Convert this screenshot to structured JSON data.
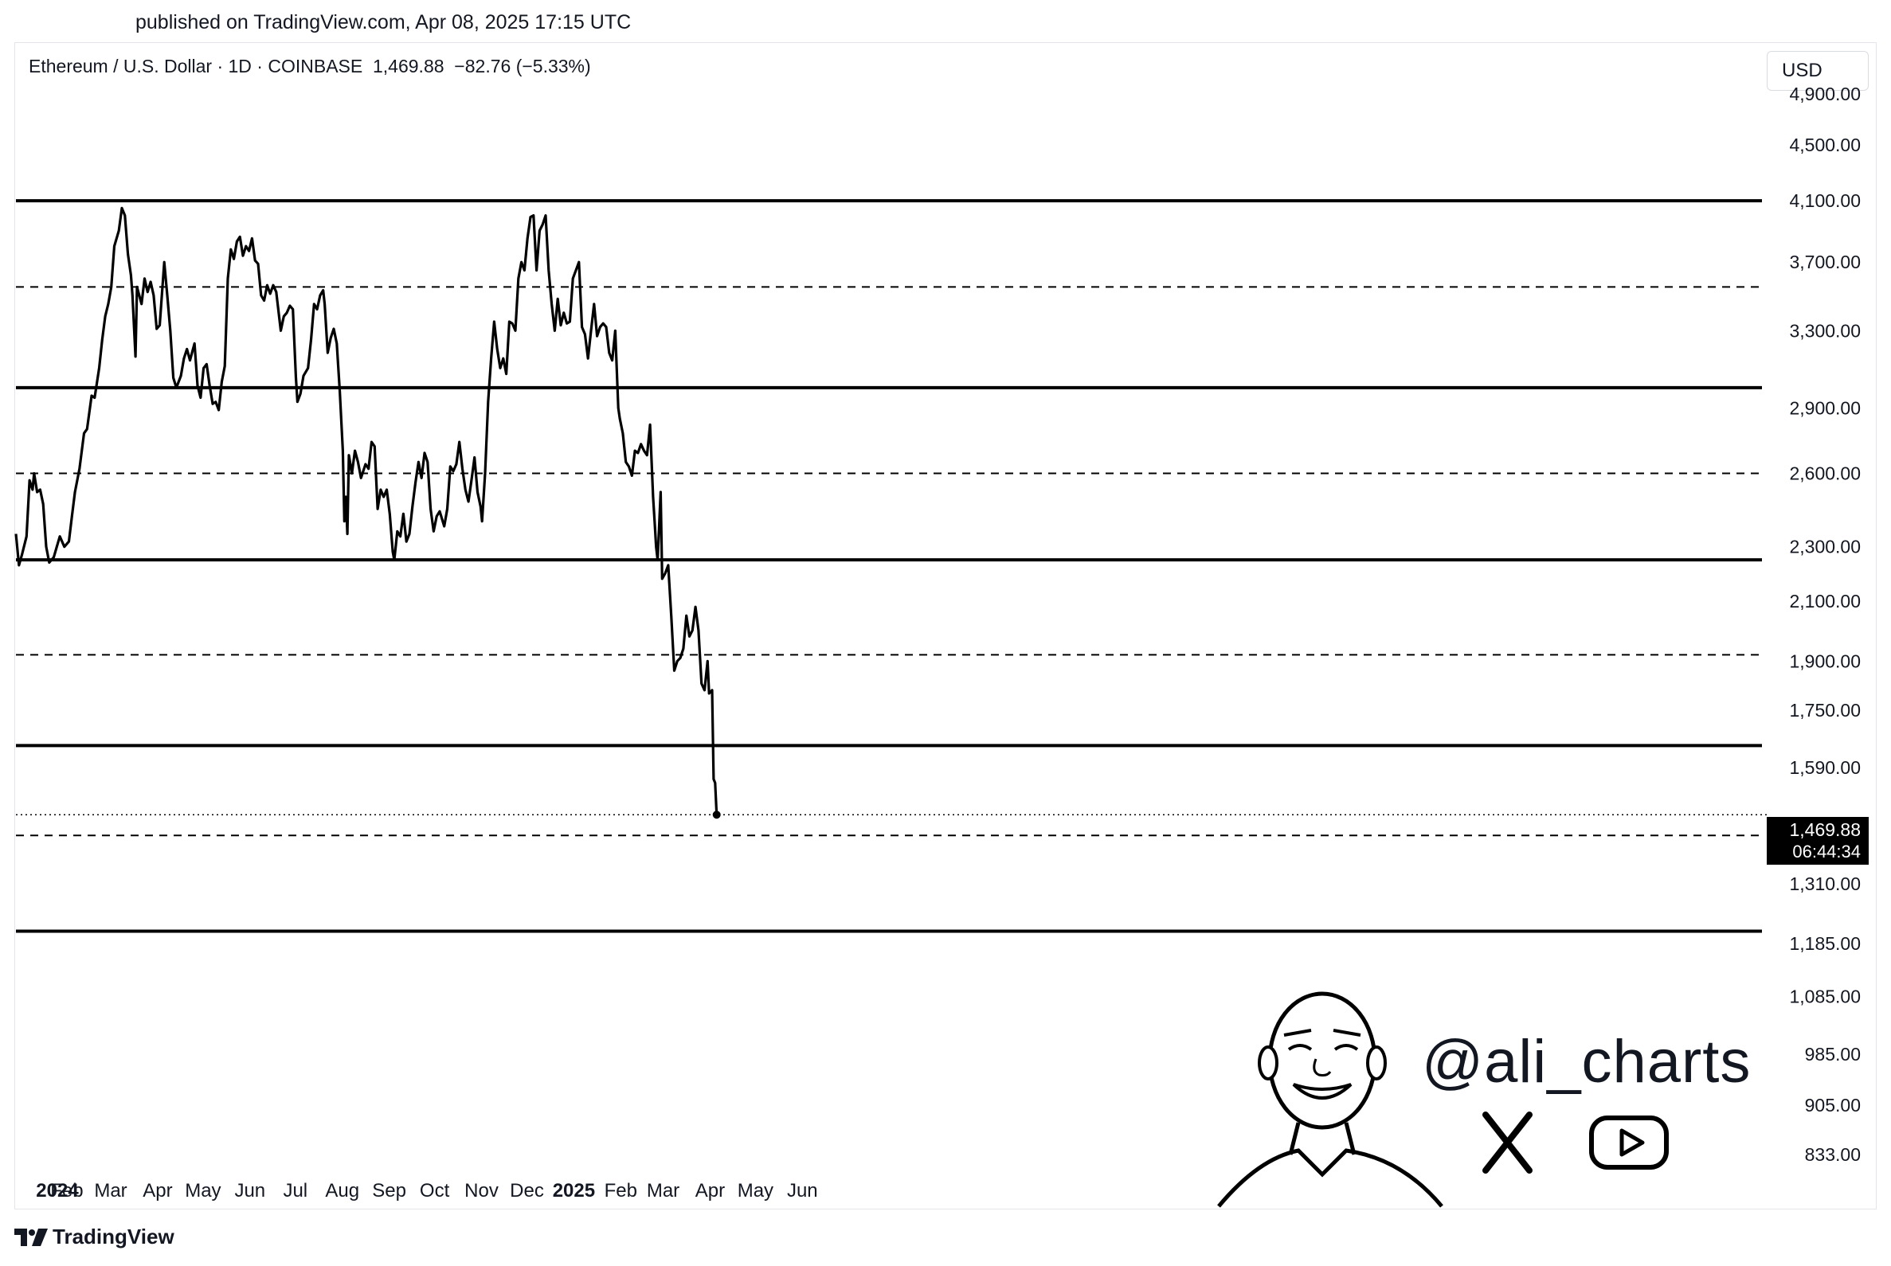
{
  "header": {
    "published": "published on TradingView.com, Apr 08, 2025 17:15 UTC",
    "symbol_line": "Ethereum / U.S. Dollar · 1D · COINBASE  1,469.88  −82.76 (−5.33%)",
    "currency": "USD"
  },
  "footer": {
    "brand": "TradingView"
  },
  "watermark": {
    "handle": "@ali_charts"
  },
  "last_price_label": {
    "price": "1,469.88",
    "countdown": "06:44:34"
  },
  "chart_data": {
    "type": "line",
    "scale": "log",
    "x_ticks": [
      "2024",
      "Feb",
      "Mar",
      "Apr",
      "May",
      "Jun",
      "Jul",
      "Aug",
      "Sep",
      "Oct",
      "Nov",
      "Dec",
      "2025",
      "Feb",
      "Mar",
      "Apr",
      "May",
      "Jun"
    ],
    "x_ticks_bold": [
      "2024",
      "2025"
    ],
    "y_ticks": [
      "4,900.00",
      "4,500.00",
      "4,100.00",
      "3,700.00",
      "3,300.00",
      "2,900.00",
      "2,600.00",
      "2,300.00",
      "2,100.00",
      "1,900.00",
      "1,750.00",
      "1,590.00",
      "1,310.00",
      "1,185.00",
      "1,085.00",
      "985.00",
      "905.00",
      "833.00"
    ],
    "ylim": [
      820,
      5100
    ],
    "levels": [
      {
        "price": 4100,
        "style": "solid"
      },
      {
        "price": 3550,
        "style": "dashed"
      },
      {
        "price": 3000,
        "style": "solid"
      },
      {
        "price": 2600,
        "style": "dashed"
      },
      {
        "price": 2250,
        "style": "solid"
      },
      {
        "price": 1920,
        "style": "dashed"
      },
      {
        "price": 1650,
        "style": "solid"
      },
      {
        "price": 1420,
        "style": "dashed"
      },
      {
        "price": 1210,
        "style": "solid"
      }
    ],
    "last_price": 1469.88,
    "series": [
      {
        "values": [
          [
            "2024-01-01",
            2350
          ],
          [
            "2024-01-03",
            2230
          ],
          [
            "2024-01-05",
            2270
          ],
          [
            "2024-01-08",
            2340
          ],
          [
            "2024-01-10",
            2570
          ],
          [
            "2024-01-12",
            2530
          ],
          [
            "2024-01-13",
            2600
          ],
          [
            "2024-01-15",
            2520
          ],
          [
            "2024-01-17",
            2530
          ],
          [
            "2024-01-19",
            2470
          ],
          [
            "2024-01-21",
            2300
          ],
          [
            "2024-01-23",
            2240
          ],
          [
            "2024-01-26",
            2260
          ],
          [
            "2024-01-28",
            2300
          ],
          [
            "2024-01-30",
            2340
          ],
          [
            "2024-02-02",
            2300
          ],
          [
            "2024-02-05",
            2320
          ],
          [
            "2024-02-07",
            2420
          ],
          [
            "2024-02-09",
            2520
          ],
          [
            "2024-02-12",
            2620
          ],
          [
            "2024-02-15",
            2780
          ],
          [
            "2024-02-17",
            2800
          ],
          [
            "2024-02-20",
            2960
          ],
          [
            "2024-02-22",
            2950
          ],
          [
            "2024-02-25",
            3100
          ],
          [
            "2024-02-27",
            3250
          ],
          [
            "2024-02-29",
            3380
          ],
          [
            "2024-03-02",
            3450
          ],
          [
            "2024-03-04",
            3550
          ],
          [
            "2024-03-06",
            3800
          ],
          [
            "2024-03-09",
            3900
          ],
          [
            "2024-03-11",
            4050
          ],
          [
            "2024-03-13",
            4000
          ],
          [
            "2024-03-15",
            3750
          ],
          [
            "2024-03-17",
            3620
          ],
          [
            "2024-03-18",
            3500
          ],
          [
            "2024-03-20",
            3160
          ],
          [
            "2024-03-21",
            3550
          ],
          [
            "2024-03-24",
            3450
          ],
          [
            "2024-03-26",
            3600
          ],
          [
            "2024-03-28",
            3520
          ],
          [
            "2024-03-30",
            3580
          ],
          [
            "2024-04-01",
            3500
          ],
          [
            "2024-04-03",
            3310
          ],
          [
            "2024-04-05",
            3330
          ],
          [
            "2024-04-08",
            3700
          ],
          [
            "2024-04-10",
            3500
          ],
          [
            "2024-04-12",
            3300
          ],
          [
            "2024-04-14",
            3050
          ],
          [
            "2024-04-16",
            3000
          ],
          [
            "2024-04-19",
            3060
          ],
          [
            "2024-04-21",
            3150
          ],
          [
            "2024-04-23",
            3200
          ],
          [
            "2024-04-25",
            3140
          ],
          [
            "2024-04-28",
            3230
          ],
          [
            "2024-04-30",
            3010
          ],
          [
            "2024-05-02",
            2950
          ],
          [
            "2024-05-04",
            3100
          ],
          [
            "2024-05-06",
            3120
          ],
          [
            "2024-05-08",
            3010
          ],
          [
            "2024-05-10",
            2920
          ],
          [
            "2024-05-12",
            2930
          ],
          [
            "2024-05-14",
            2890
          ],
          [
            "2024-05-16",
            3030
          ],
          [
            "2024-05-18",
            3110
          ],
          [
            "2024-05-20",
            3600
          ],
          [
            "2024-05-22",
            3780
          ],
          [
            "2024-05-24",
            3720
          ],
          [
            "2024-05-26",
            3830
          ],
          [
            "2024-05-28",
            3860
          ],
          [
            "2024-05-30",
            3740
          ],
          [
            "2024-06-01",
            3800
          ],
          [
            "2024-06-03",
            3770
          ],
          [
            "2024-06-05",
            3850
          ],
          [
            "2024-06-07",
            3710
          ],
          [
            "2024-06-09",
            3690
          ],
          [
            "2024-06-11",
            3500
          ],
          [
            "2024-06-13",
            3470
          ],
          [
            "2024-06-15",
            3560
          ],
          [
            "2024-06-17",
            3510
          ],
          [
            "2024-06-19",
            3560
          ],
          [
            "2024-06-21",
            3520
          ],
          [
            "2024-06-24",
            3300
          ],
          [
            "2024-06-26",
            3380
          ],
          [
            "2024-06-28",
            3400
          ],
          [
            "2024-06-30",
            3440
          ],
          [
            "2024-07-02",
            3420
          ],
          [
            "2024-07-04",
            3050
          ],
          [
            "2024-07-05",
            2930
          ],
          [
            "2024-07-07",
            2970
          ],
          [
            "2024-07-09",
            3060
          ],
          [
            "2024-07-12",
            3100
          ],
          [
            "2024-07-14",
            3250
          ],
          [
            "2024-07-16",
            3450
          ],
          [
            "2024-07-18",
            3420
          ],
          [
            "2024-07-20",
            3500
          ],
          [
            "2024-07-22",
            3530
          ],
          [
            "2024-07-23",
            3450
          ],
          [
            "2024-07-25",
            3180
          ],
          [
            "2024-07-27",
            3260
          ],
          [
            "2024-07-29",
            3310
          ],
          [
            "2024-07-31",
            3230
          ],
          [
            "2024-08-02",
            2980
          ],
          [
            "2024-08-04",
            2700
          ],
          [
            "2024-08-05",
            2400
          ],
          [
            "2024-08-06",
            2500
          ],
          [
            "2024-08-07",
            2350
          ],
          [
            "2024-08-08",
            2680
          ],
          [
            "2024-08-10",
            2600
          ],
          [
            "2024-08-12",
            2700
          ],
          [
            "2024-08-14",
            2650
          ],
          [
            "2024-08-16",
            2580
          ],
          [
            "2024-08-19",
            2640
          ],
          [
            "2024-08-21",
            2620
          ],
          [
            "2024-08-23",
            2740
          ],
          [
            "2024-08-25",
            2720
          ],
          [
            "2024-08-27",
            2450
          ],
          [
            "2024-08-29",
            2530
          ],
          [
            "2024-08-31",
            2500
          ],
          [
            "2024-09-02",
            2530
          ],
          [
            "2024-09-04",
            2430
          ],
          [
            "2024-09-06",
            2280
          ],
          [
            "2024-09-07",
            2250
          ],
          [
            "2024-09-09",
            2360
          ],
          [
            "2024-09-11",
            2340
          ],
          [
            "2024-09-13",
            2430
          ],
          [
            "2024-09-15",
            2320
          ],
          [
            "2024-09-17",
            2350
          ],
          [
            "2024-09-19",
            2460
          ],
          [
            "2024-09-21",
            2560
          ],
          [
            "2024-09-23",
            2650
          ],
          [
            "2024-09-25",
            2580
          ],
          [
            "2024-09-27",
            2690
          ],
          [
            "2024-09-29",
            2650
          ],
          [
            "2024-10-01",
            2450
          ],
          [
            "2024-10-03",
            2360
          ],
          [
            "2024-10-05",
            2420
          ],
          [
            "2024-10-07",
            2440
          ],
          [
            "2024-10-10",
            2380
          ],
          [
            "2024-10-12",
            2450
          ],
          [
            "2024-10-14",
            2630
          ],
          [
            "2024-10-16",
            2610
          ],
          [
            "2024-10-18",
            2640
          ],
          [
            "2024-10-20",
            2740
          ],
          [
            "2024-10-22",
            2620
          ],
          [
            "2024-10-24",
            2530
          ],
          [
            "2024-10-26",
            2480
          ],
          [
            "2024-10-28",
            2570
          ],
          [
            "2024-10-30",
            2670
          ],
          [
            "2024-11-01",
            2520
          ],
          [
            "2024-11-03",
            2460
          ],
          [
            "2024-11-04",
            2400
          ],
          [
            "2024-11-06",
            2600
          ],
          [
            "2024-11-08",
            2930
          ],
          [
            "2024-11-10",
            3150
          ],
          [
            "2024-11-12",
            3350
          ],
          [
            "2024-11-14",
            3200
          ],
          [
            "2024-11-16",
            3100
          ],
          [
            "2024-11-18",
            3150
          ],
          [
            "2024-11-20",
            3070
          ],
          [
            "2024-11-22",
            3350
          ],
          [
            "2024-11-24",
            3340
          ],
          [
            "2024-11-26",
            3300
          ],
          [
            "2024-11-28",
            3600
          ],
          [
            "2024-11-30",
            3700
          ],
          [
            "2024-12-02",
            3650
          ],
          [
            "2024-12-04",
            3850
          ],
          [
            "2024-12-06",
            3990
          ],
          [
            "2024-12-08",
            4000
          ],
          [
            "2024-12-10",
            3650
          ],
          [
            "2024-12-12",
            3900
          ],
          [
            "2024-12-14",
            3940
          ],
          [
            "2024-12-16",
            4000
          ],
          [
            "2024-12-18",
            3650
          ],
          [
            "2024-12-20",
            3450
          ],
          [
            "2024-12-22",
            3300
          ],
          [
            "2024-12-24",
            3480
          ],
          [
            "2024-12-26",
            3330
          ],
          [
            "2024-12-28",
            3400
          ],
          [
            "2024-12-30",
            3340
          ],
          [
            "2025-01-01",
            3350
          ],
          [
            "2025-01-03",
            3600
          ],
          [
            "2025-01-05",
            3650
          ],
          [
            "2025-01-07",
            3700
          ],
          [
            "2025-01-09",
            3320
          ],
          [
            "2025-01-11",
            3280
          ],
          [
            "2025-01-13",
            3150
          ],
          [
            "2025-01-15",
            3300
          ],
          [
            "2025-01-17",
            3450
          ],
          [
            "2025-01-19",
            3270
          ],
          [
            "2025-01-21",
            3320
          ],
          [
            "2025-01-23",
            3340
          ],
          [
            "2025-01-25",
            3320
          ],
          [
            "2025-01-27",
            3180
          ],
          [
            "2025-01-29",
            3140
          ],
          [
            "2025-01-31",
            3300
          ],
          [
            "2025-02-02",
            2900
          ],
          [
            "2025-02-03",
            2850
          ],
          [
            "2025-02-05",
            2780
          ],
          [
            "2025-02-07",
            2650
          ],
          [
            "2025-02-09",
            2630
          ],
          [
            "2025-02-11",
            2590
          ],
          [
            "2025-02-13",
            2700
          ],
          [
            "2025-02-15",
            2690
          ],
          [
            "2025-02-17",
            2730
          ],
          [
            "2025-02-19",
            2700
          ],
          [
            "2025-02-21",
            2680
          ],
          [
            "2025-02-23",
            2820
          ],
          [
            "2025-02-25",
            2500
          ],
          [
            "2025-02-26",
            2400
          ],
          [
            "2025-02-27",
            2300
          ],
          [
            "2025-02-28",
            2250
          ],
          [
            "2025-03-02",
            2520
          ],
          [
            "2025-03-03",
            2180
          ],
          [
            "2025-03-05",
            2200
          ],
          [
            "2025-03-07",
            2230
          ],
          [
            "2025-03-09",
            2050
          ],
          [
            "2025-03-11",
            1870
          ],
          [
            "2025-03-13",
            1900
          ],
          [
            "2025-03-15",
            1910
          ],
          [
            "2025-03-17",
            1940
          ],
          [
            "2025-03-19",
            2050
          ],
          [
            "2025-03-21",
            1980
          ],
          [
            "2025-03-23",
            2000
          ],
          [
            "2025-03-25",
            2080
          ],
          [
            "2025-03-27",
            2000
          ],
          [
            "2025-03-29",
            1830
          ],
          [
            "2025-03-31",
            1810
          ],
          [
            "2025-04-02",
            1900
          ],
          [
            "2025-04-03",
            1800
          ],
          [
            "2025-04-05",
            1810
          ],
          [
            "2025-04-06",
            1560
          ],
          [
            "2025-04-07",
            1550
          ],
          [
            "2025-04-08",
            1469.88
          ]
        ]
      }
    ]
  }
}
